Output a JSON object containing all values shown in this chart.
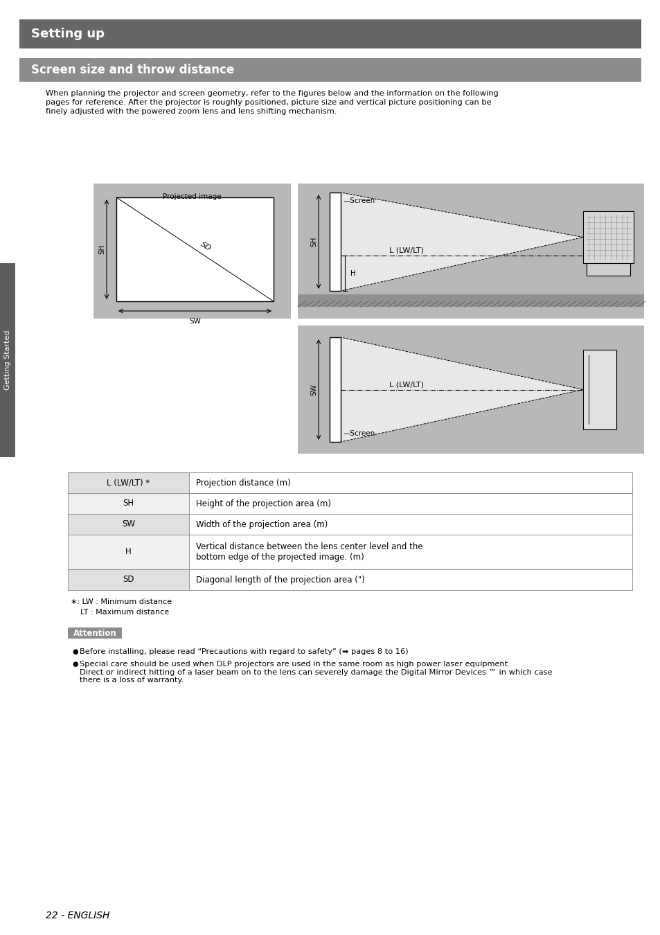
{
  "page_title": "Setting up",
  "section_title": "Screen size and throw distance",
  "intro_text": "When planning the projector and screen geometry, refer to the figures below and the information on the following\npages for reference. After the projector is roughly positioned, picture size and vertical picture positioning can be\nfinely adjusted with the powered zoom lens and lens shifting mechanism.",
  "table_rows": [
    [
      "L (LW/LT) *",
      "Projection distance (m)"
    ],
    [
      "SH",
      "Height of the projection area (m)"
    ],
    [
      "SW",
      "Width of the projection area (m)"
    ],
    [
      "H",
      "Vertical distance between the lens center level and the\nbottom edge of the projected image. (m)"
    ],
    [
      "SD",
      "Diagonal length of the projection area (\")"
    ]
  ],
  "footnote1": "∗: LW : Minimum distance",
  "footnote2": "    LT : Maximum distance",
  "attention_title": "Attention",
  "attention_bullets": [
    "Before installing, please read “Precautions with regard to safety” (➡ pages 8 to 16)",
    "Special care should be used when DLP projectors are used in the same room as high power laser equipment.\nDirect or indirect hitting of a laser beam on to the lens can severely damage the Digital Mirror Devices ™ in which case\nthere is a loss of warranty."
  ],
  "page_number": "22 - ENGLISH",
  "header_bg": "#666666",
  "section_bg": "#8c8c8c",
  "diagram_bg": "#b8b8b8",
  "table_alt_bg": "#e0e0e0",
  "attention_bg": "#8c8c8c",
  "sidebar_bg": "#5c5c5c",
  "white": "#ffffff",
  "black": "#000000"
}
